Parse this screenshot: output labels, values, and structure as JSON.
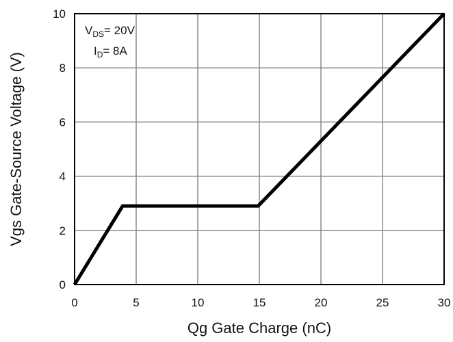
{
  "chart_data": {
    "type": "line",
    "xlabel": "Qg Gate Charge (nC)",
    "ylabel": "Vgs Gate-Source Voltage (V)",
    "xlim": [
      0,
      30
    ],
    "ylim": [
      0,
      10
    ],
    "x_ticks": [
      "0",
      "5",
      "10",
      "15",
      "20",
      "25",
      "30"
    ],
    "y_ticks": [
      "0",
      "2",
      "4",
      "6",
      "8",
      "10"
    ],
    "grid": true,
    "annotations": {
      "vds": {
        "symbol": "V",
        "subscript": "DS",
        "value": "= 20V"
      },
      "id": {
        "symbol": "I",
        "subscript": "D",
        "value": "= 8A"
      }
    },
    "series": [
      {
        "x": [
          0,
          3.9,
          14.9,
          30
        ],
        "y": [
          0,
          2.9,
          2.9,
          10
        ],
        "color": "#000000"
      }
    ],
    "colors": {
      "line": "#000000",
      "grid": "#888888",
      "frame": "#000000"
    }
  }
}
